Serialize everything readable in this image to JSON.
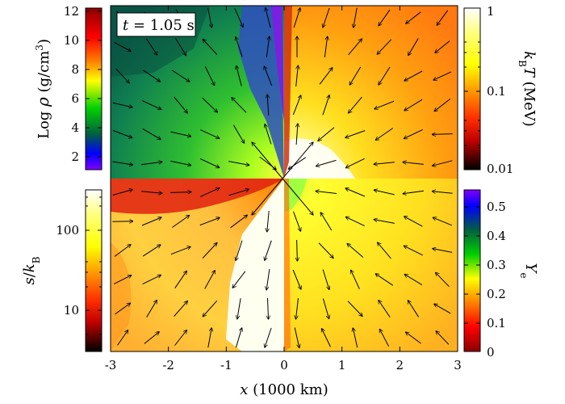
{
  "figure": {
    "time_label_italic": "t",
    "time_label_rest": " = 1.05 s",
    "x_axis": {
      "label_italic": "x",
      "label_rest": " (1000 km)",
      "ticks": [
        "-3",
        "-2",
        "-1",
        "0",
        "1",
        "2",
        "3"
      ],
      "range": [
        -3,
        3
      ]
    },
    "quadrants": {
      "top_left": "Log density",
      "top_right": "temperature",
      "bottom_left": "entropy",
      "bottom_right": "electron fraction"
    }
  },
  "colorbars": {
    "density": {
      "label_prefix": "Log ",
      "label_symbol": "ρ",
      "label_unit": " (g/cm",
      "label_sup": "3",
      "label_close": ")",
      "ticks": [
        "12",
        "10",
        "8",
        "6",
        "4",
        "2"
      ],
      "range": [
        1,
        12
      ],
      "colors_top_to_bottom": [
        "#8b0000",
        "#ff0000",
        "#ff8000",
        "#ffff00",
        "#00d000",
        "#006040",
        "#0000ff",
        "#8000ff"
      ]
    },
    "temperature": {
      "label_italic": "k",
      "label_sub": "B",
      "label_T": "T",
      "label_unit": " (MeV)",
      "ticks": [
        "1",
        "0.1",
        "0.01"
      ],
      "range": [
        0.01,
        1
      ],
      "scale": "log",
      "colors_top_to_bottom": [
        "#ffffff",
        "#ffff80",
        "#ffff00",
        "#ffa000",
        "#ff3000",
        "#c00000",
        "#000000"
      ]
    },
    "entropy": {
      "label_italic": "s",
      "label_slash": "/",
      "label_k": "k",
      "label_sub": "B",
      "ticks": [
        "100",
        "10"
      ],
      "scale": "log",
      "colors_top_to_bottom": [
        "#ffffff",
        "#ffff80",
        "#ffff00",
        "#ffa000",
        "#ff3000",
        "#c00000",
        "#000000"
      ]
    },
    "electron_fraction": {
      "label_italic": "Y",
      "label_sub": "e",
      "ticks": [
        "0.5",
        "0.4",
        "0.3",
        "0.2",
        "0.1",
        "0"
      ],
      "range": [
        0,
        0.55
      ],
      "colors_top_to_bottom": [
        "#8000ff",
        "#0000ff",
        "#006040",
        "#00d000",
        "#ffff00",
        "#ff8000",
        "#ff0000",
        "#8b0000"
      ]
    }
  }
}
